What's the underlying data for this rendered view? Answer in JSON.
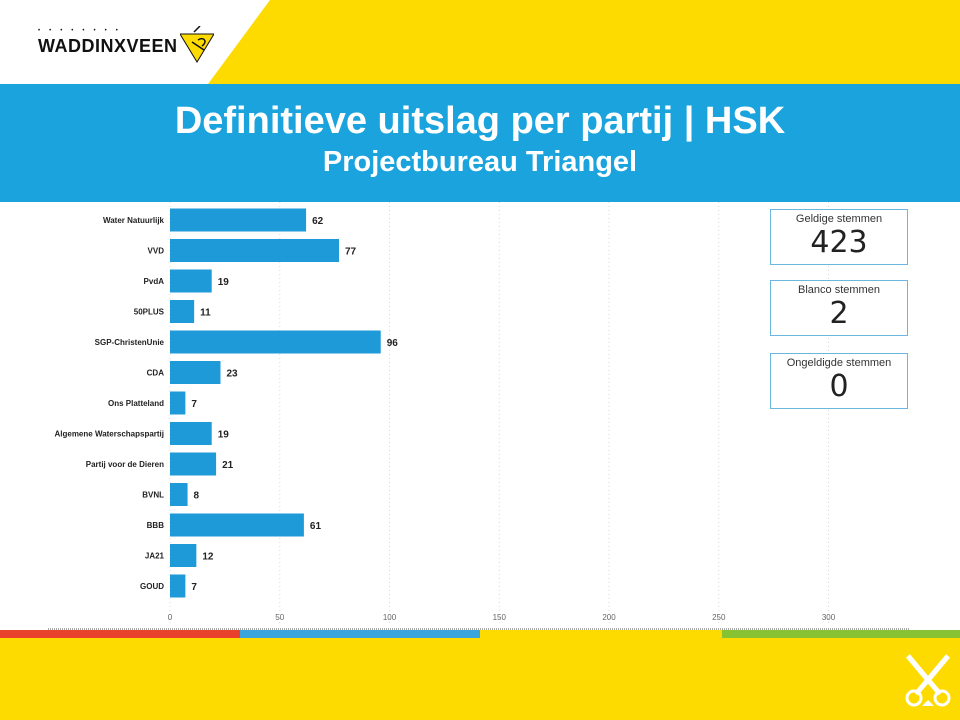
{
  "header": {
    "logo_text": "WADDINXVEEN",
    "logo_icon": "waddinxveen-logo-icon",
    "title": "Definitieve uitslag per partij | HSK",
    "subtitle": "Projectbureau Triangel"
  },
  "cards": [
    {
      "label": "Geldige stemmen",
      "value": "423"
    },
    {
      "label": "Blanco stemmen",
      "value": "2"
    },
    {
      "label": "Ongeldigde stemmen",
      "value": "0"
    }
  ],
  "colors": {
    "yellow": "#fddb00",
    "blue": "#1aa3dd",
    "bar": "#1f9ad8",
    "strip": [
      "#e8412c",
      "#3aa5dc",
      "#fddb00",
      "#86c232"
    ]
  },
  "chart_data": {
    "type": "bar",
    "orientation": "horizontal",
    "categories": [
      "Water Natuurlijk",
      "VVD",
      "PvdA",
      "50PLUS",
      "SGP-ChristenUnie",
      "CDA",
      "Ons Platteland",
      "Algemene Waterschapspartij",
      "Partij voor de Dieren",
      "BVNL",
      "BBB",
      "JA21",
      "GOUD"
    ],
    "values": [
      62,
      77,
      19,
      11,
      96,
      23,
      7,
      19,
      21,
      8,
      61,
      12,
      7
    ],
    "xlim": [
      0,
      300
    ],
    "xticks": [
      0,
      50,
      100,
      150,
      200,
      250,
      300
    ],
    "data_labels": true,
    "grid": "vertical dotted",
    "legend": "none",
    "title": "",
    "xlabel": "",
    "ylabel": ""
  }
}
